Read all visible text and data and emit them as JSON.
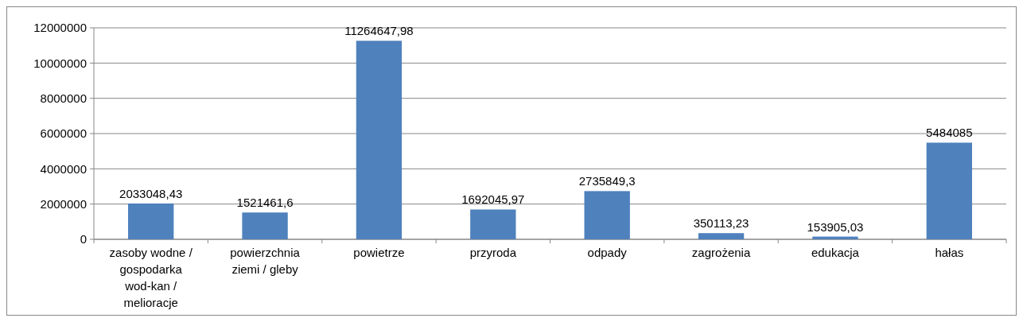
{
  "chart_data": {
    "type": "bar",
    "categories": [
      "zasoby wodne / gospodarka wod-kan / melioracje",
      "powierzchnia ziemi / gleby",
      "powietrze",
      "przyroda",
      "odpady",
      "zagrożenia",
      "edukacja",
      "hałas"
    ],
    "values": [
      2033048.43,
      1521461.6,
      11264647.98,
      1692045.97,
      2735849.3,
      350113.23,
      153905.03,
      5484085
    ],
    "value_labels": [
      "2033048,43",
      "1521461,6",
      "11264647,98",
      "1692045,97",
      "2735849,3",
      "350113,23",
      "153905,03",
      "5484085"
    ],
    "color": "#4f81bd",
    "ylim": [
      0,
      12000000
    ],
    "yticks": [
      0,
      2000000,
      4000000,
      6000000,
      8000000,
      10000000,
      12000000
    ],
    "grid": "y"
  }
}
